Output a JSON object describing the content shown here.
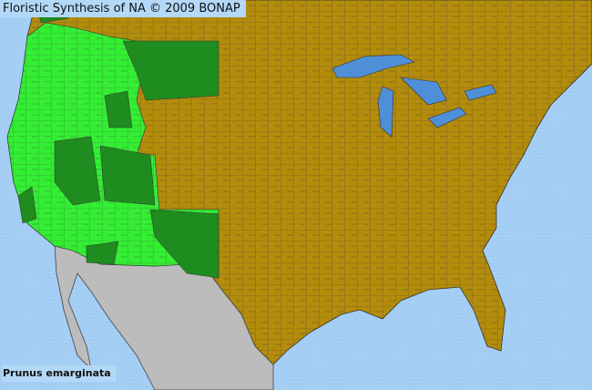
{
  "header": {
    "title": "Floristic Synthesis of NA © 2009 BONAP"
  },
  "species": {
    "name": "Prunus emarginata"
  },
  "colors": {
    "ocean": "#a6cff5",
    "land_absent": "#b38c0c",
    "outside_region": "#bcbcbc",
    "county_present": "#33ee33",
    "county_present_dark": "#1e8c1e",
    "county_border": "#3a3a3a",
    "lakes": "#4f8fd8"
  },
  "legend_meaning": []
}
